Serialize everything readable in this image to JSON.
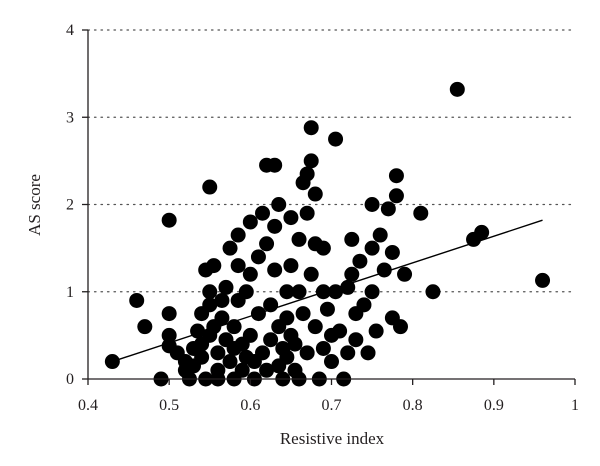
{
  "chart_data": {
    "type": "scatter",
    "title": "",
    "xlabel": "Resistive index",
    "ylabel": "AS score",
    "xlim": [
      0.4,
      1.0
    ],
    "ylim": [
      0,
      4
    ],
    "xticks": [
      "0.4",
      "0.5",
      "0.6",
      "0.7",
      "0.8",
      "0.9",
      "1"
    ],
    "yticks": [
      "0",
      "1",
      "2",
      "3",
      "4"
    ],
    "grid": "horizontal dotted",
    "colors": {
      "marker": "#000000",
      "axis": "#231f20",
      "grid": "#555555"
    },
    "trendline": {
      "x": [
        0.43,
        0.96
      ],
      "y": [
        0.2,
        1.82
      ]
    },
    "points": [
      [
        0.43,
        0.2
      ],
      [
        0.46,
        0.9
      ],
      [
        0.47,
        0.6
      ],
      [
        0.49,
        0.0
      ],
      [
        0.5,
        1.82
      ],
      [
        0.5,
        0.75
      ],
      [
        0.5,
        0.5
      ],
      [
        0.5,
        0.38
      ],
      [
        0.51,
        0.3
      ],
      [
        0.52,
        0.1
      ],
      [
        0.52,
        0.2
      ],
      [
        0.525,
        0.0
      ],
      [
        0.53,
        0.35
      ],
      [
        0.53,
        0.15
      ],
      [
        0.535,
        0.55
      ],
      [
        0.54,
        0.75
      ],
      [
        0.54,
        0.4
      ],
      [
        0.54,
        0.25
      ],
      [
        0.545,
        1.25
      ],
      [
        0.545,
        0.0
      ],
      [
        0.55,
        0.5
      ],
      [
        0.55,
        0.85
      ],
      [
        0.55,
        1.0
      ],
      [
        0.55,
        2.2
      ],
      [
        0.555,
        0.6
      ],
      [
        0.555,
        1.3
      ],
      [
        0.56,
        0.3
      ],
      [
        0.56,
        0.1
      ],
      [
        0.56,
        0.0
      ],
      [
        0.565,
        0.9
      ],
      [
        0.565,
        0.7
      ],
      [
        0.57,
        1.05
      ],
      [
        0.57,
        0.45
      ],
      [
        0.575,
        1.5
      ],
      [
        0.575,
        0.2
      ],
      [
        0.58,
        0.35
      ],
      [
        0.58,
        0.6
      ],
      [
        0.58,
        0.0
      ],
      [
        0.585,
        1.65
      ],
      [
        0.585,
        1.3
      ],
      [
        0.585,
        0.9
      ],
      [
        0.59,
        0.1
      ],
      [
        0.59,
        0.4
      ],
      [
        0.595,
        1.0
      ],
      [
        0.595,
        0.25
      ],
      [
        0.6,
        1.8
      ],
      [
        0.6,
        1.2
      ],
      [
        0.6,
        0.5
      ],
      [
        0.605,
        0.2
      ],
      [
        0.605,
        0.0
      ],
      [
        0.61,
        1.4
      ],
      [
        0.61,
        0.75
      ],
      [
        0.615,
        1.9
      ],
      [
        0.615,
        0.3
      ],
      [
        0.62,
        2.45
      ],
      [
        0.62,
        1.55
      ],
      [
        0.62,
        0.1
      ],
      [
        0.625,
        0.85
      ],
      [
        0.625,
        0.45
      ],
      [
        0.63,
        2.45
      ],
      [
        0.63,
        1.75
      ],
      [
        0.63,
        1.25
      ],
      [
        0.635,
        2.0
      ],
      [
        0.635,
        0.6
      ],
      [
        0.635,
        0.15
      ],
      [
        0.64,
        0.35
      ],
      [
        0.64,
        0.0
      ],
      [
        0.645,
        1.0
      ],
      [
        0.645,
        0.7
      ],
      [
        0.645,
        0.25
      ],
      [
        0.65,
        1.85
      ],
      [
        0.65,
        1.3
      ],
      [
        0.65,
        0.5
      ],
      [
        0.655,
        0.1
      ],
      [
        0.655,
        0.4
      ],
      [
        0.66,
        1.6
      ],
      [
        0.66,
        1.0
      ],
      [
        0.66,
        0.0
      ],
      [
        0.665,
        2.25
      ],
      [
        0.665,
        0.75
      ],
      [
        0.67,
        2.35
      ],
      [
        0.67,
        1.9
      ],
      [
        0.67,
        0.3
      ],
      [
        0.675,
        2.88
      ],
      [
        0.675,
        2.5
      ],
      [
        0.675,
        1.2
      ],
      [
        0.68,
        2.12
      ],
      [
        0.68,
        1.55
      ],
      [
        0.68,
        0.6
      ],
      [
        0.685,
        0.0
      ],
      [
        0.69,
        1.0
      ],
      [
        0.69,
        0.35
      ],
      [
        0.69,
        1.5
      ],
      [
        0.695,
        0.8
      ],
      [
        0.7,
        0.5
      ],
      [
        0.7,
        0.2
      ],
      [
        0.705,
        2.75
      ],
      [
        0.705,
        1.0
      ],
      [
        0.71,
        0.55
      ],
      [
        0.715,
        0.0
      ],
      [
        0.72,
        1.05
      ],
      [
        0.72,
        0.3
      ],
      [
        0.725,
        1.6
      ],
      [
        0.725,
        1.2
      ],
      [
        0.73,
        0.75
      ],
      [
        0.73,
        0.45
      ],
      [
        0.735,
        1.35
      ],
      [
        0.74,
        0.85
      ],
      [
        0.745,
        0.3
      ],
      [
        0.75,
        2.0
      ],
      [
        0.75,
        1.5
      ],
      [
        0.75,
        1.0
      ],
      [
        0.755,
        0.55
      ],
      [
        0.76,
        1.65
      ],
      [
        0.765,
        1.25
      ],
      [
        0.77,
        1.95
      ],
      [
        0.775,
        1.45
      ],
      [
        0.775,
        0.7
      ],
      [
        0.78,
        2.1
      ],
      [
        0.78,
        2.33
      ],
      [
        0.785,
        0.6
      ],
      [
        0.79,
        1.2
      ],
      [
        0.81,
        1.9
      ],
      [
        0.825,
        1.0
      ],
      [
        0.855,
        3.32
      ],
      [
        0.875,
        1.6
      ],
      [
        0.885,
        1.68
      ],
      [
        0.96,
        1.13
      ]
    ]
  }
}
